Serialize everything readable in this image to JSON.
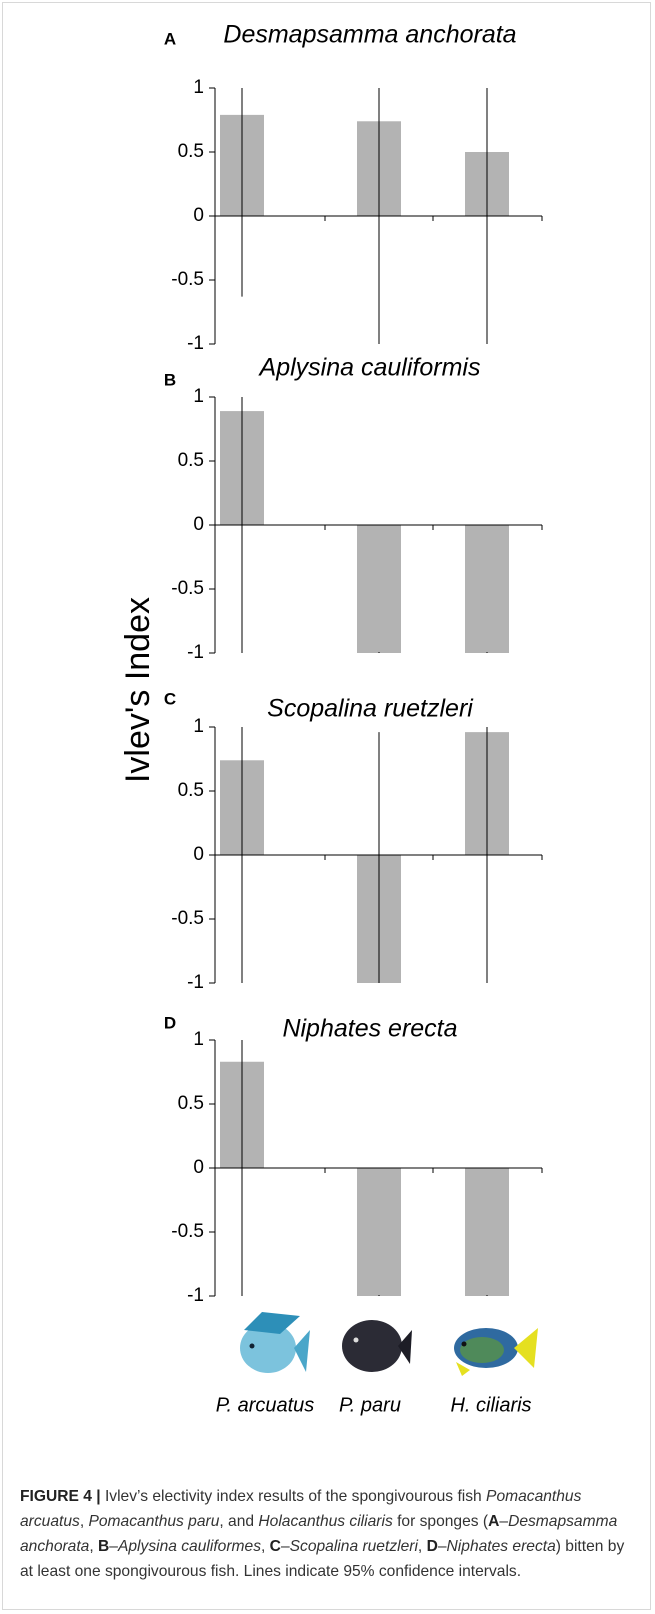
{
  "y_label": "Ivlev's Index",
  "chart_data": [
    {
      "type": "bar",
      "panel": "A",
      "title": "Desmapsamma anchorata",
      "categories": [
        null,
        null,
        null
      ],
      "values": [
        0.79,
        0.74,
        0.5
      ],
      "ci": [
        [
          -0.63,
          1
        ],
        [
          -1,
          1
        ],
        [
          -1,
          1
        ]
      ],
      "color": "#b3b3b3",
      "ylim": [
        -1,
        1
      ],
      "yticks": [
        -1,
        -0.5,
        0,
        0.5,
        1
      ]
    },
    {
      "type": "bar",
      "panel": "B",
      "title": "Aplysina cauliformis",
      "categories": [
        null,
        null,
        null
      ],
      "values": [
        0.89,
        -1,
        -1
      ],
      "ci": [
        [
          -1,
          1
        ],
        [
          -1,
          -1
        ],
        [
          -1,
          -1
        ]
      ],
      "color": "#b3b3b3",
      "ylim": [
        -1,
        1
      ],
      "yticks": [
        -1,
        -0.5,
        0,
        0.5,
        1
      ]
    },
    {
      "type": "bar",
      "panel": "C",
      "title": "Scopalina ruetzleri",
      "categories": [
        null,
        null,
        null
      ],
      "values": [
        0.74,
        -1,
        0.96
      ],
      "ci": [
        [
          -1,
          1
        ],
        [
          -1,
          0.96
        ],
        [
          -1,
          1
        ]
      ],
      "color": "#b3b3b3",
      "ylim": [
        -1,
        1
      ],
      "yticks": [
        -1,
        -0.5,
        0,
        0.5,
        1
      ]
    },
    {
      "type": "bar",
      "panel": "D",
      "title": "Niphates erecta",
      "categories": [
        "P. arcuatus",
        "P. paru",
        "H. ciliaris"
      ],
      "values": [
        0.83,
        -1,
        -1
      ],
      "ci": [
        [
          -1,
          1
        ],
        [
          -1,
          -1
        ],
        [
          -1,
          -1
        ]
      ],
      "color": "#b3b3b3",
      "ylim": [
        -1,
        1
      ],
      "yticks": [
        -1,
        -0.5,
        0,
        0.5,
        1
      ]
    }
  ],
  "caption": [
    "FIGURE 4 |",
    " Ivlev’s electivity index results of the spongivourous fish ",
    "Pomacanthus arcuatus",
    ", ",
    "Pomacanthus paru",
    ", and ",
    "Holacanthus ciliaris",
    " for sponges (",
    "A",
    "–",
    "Desmapsamma anchorata",
    ", ",
    "B",
    "–",
    "Aplysina cauliformes",
    ", ",
    "C",
    "–",
    "Scopalina ruetzleri",
    ", ",
    "D",
    "–",
    "Niphates erecta",
    ") bitten by at least one spongivourous fish. Lines indicate 95% confidence intervals."
  ]
}
